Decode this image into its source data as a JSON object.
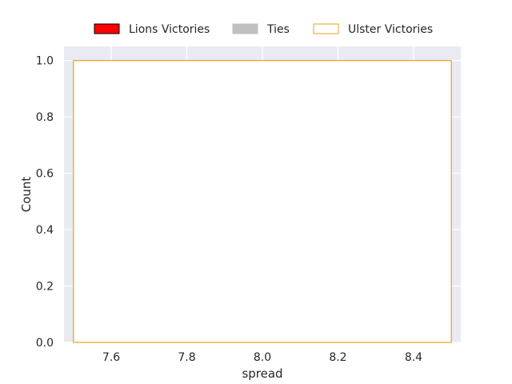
{
  "chart_data": {
    "type": "bar",
    "xlabel": "spread",
    "ylabel": "Count",
    "xlim": [
      7.475,
      8.525
    ],
    "ylim": [
      0,
      1.05
    ],
    "xticks": [
      7.6,
      7.8,
      8.0,
      8.2,
      8.4
    ],
    "xtick_labels": [
      "7.6",
      "7.8",
      "8.0",
      "8.2",
      "8.4"
    ],
    "yticks": [
      0,
      0.2,
      0.4,
      0.6,
      0.8,
      1.0
    ],
    "ytick_labels": [
      "0.0",
      "0.2",
      "0.4",
      "0.6",
      "0.8",
      "1.0"
    ],
    "grid": true,
    "legend_position": "top-center",
    "series": [
      {
        "name": "Lions Victories",
        "style": "filled",
        "color": "#ff0000",
        "edge": "#000000",
        "bins": []
      },
      {
        "name": "Ties",
        "style": "filled",
        "color": "#c0c0c0",
        "edge": "#c0c0c0",
        "bins": []
      },
      {
        "name": "Ulster Victories",
        "style": "outline",
        "color": "#ffffff",
        "edge": "#e8a020",
        "bins": [
          {
            "x0": 7.5,
            "x1": 8.5,
            "count": 1
          }
        ]
      }
    ]
  },
  "colors": {
    "plot_background": "#eaeaf2",
    "grid": "#ffffff",
    "text": "#262626"
  }
}
